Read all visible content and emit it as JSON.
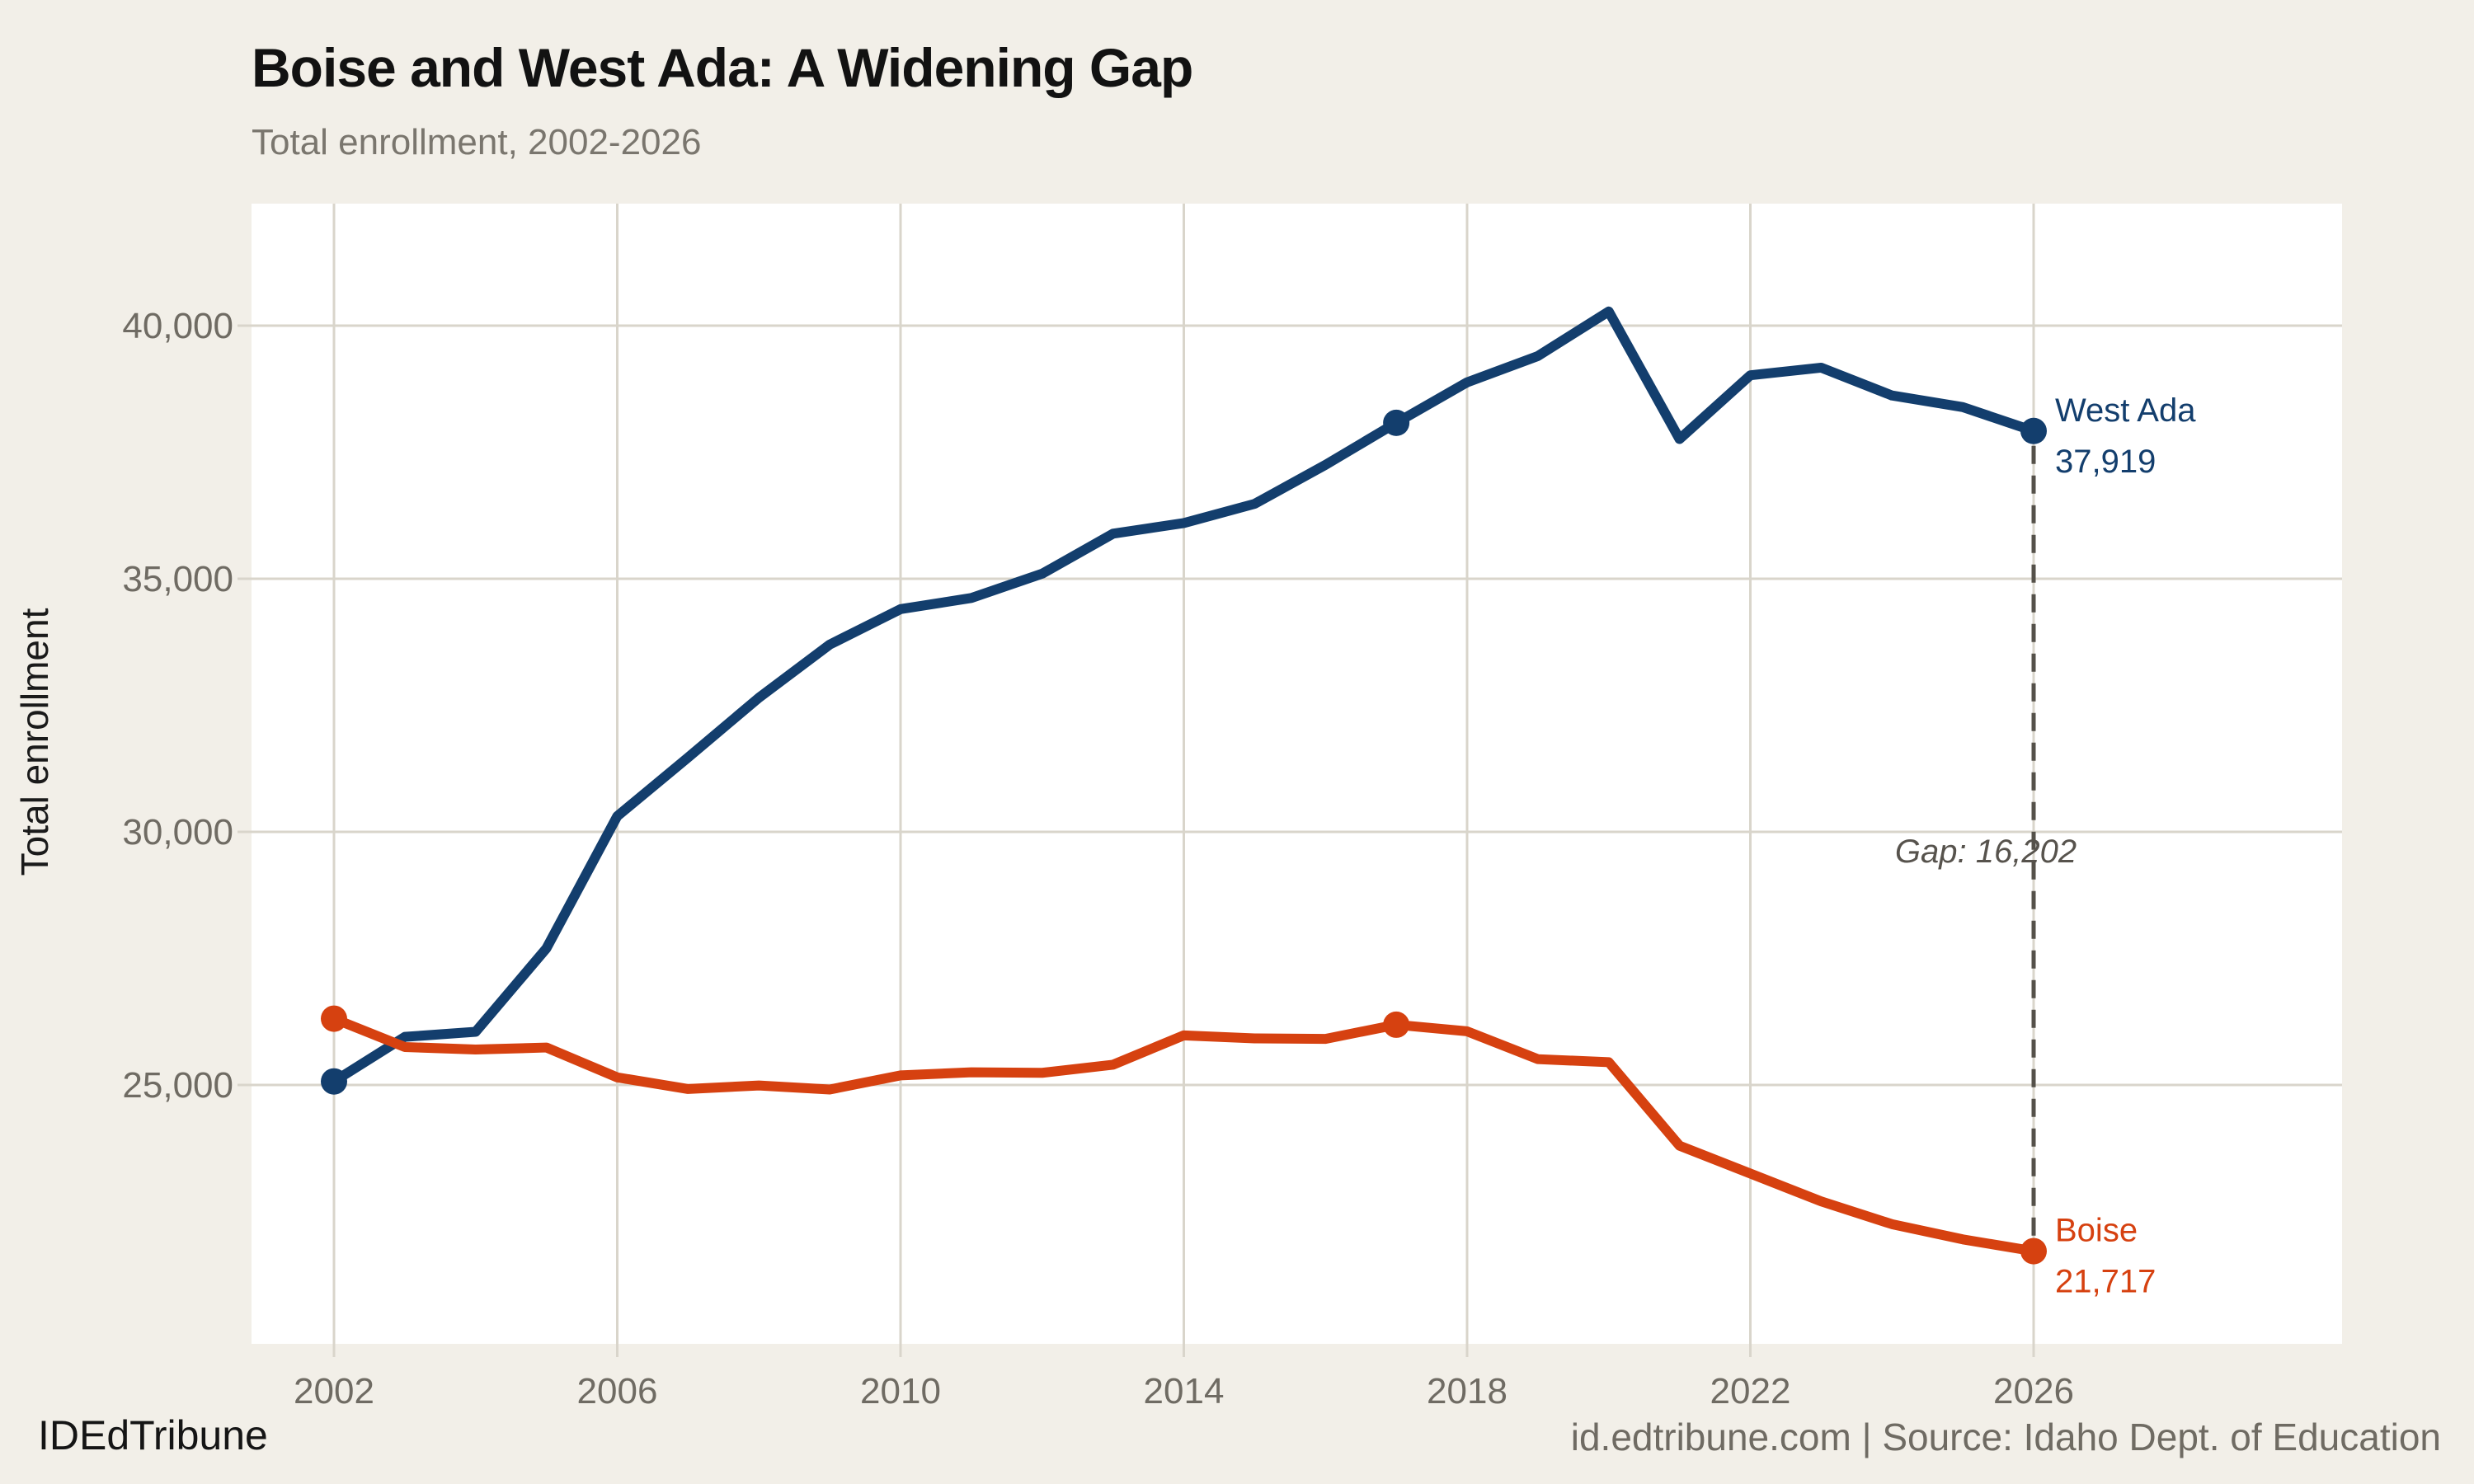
{
  "header": {
    "title": "Boise and West Ada: A Widening Gap",
    "subtitle": "Total enrollment, 2002-2026"
  },
  "footer": {
    "brand": "IDEdTribune",
    "source": "id.edtribune.com | Source: Idaho Dept. of Education"
  },
  "chart_data": {
    "type": "line",
    "title": "Boise and West Ada: A Widening Gap",
    "subtitle": "Total enrollment, 2002-2026",
    "ylabel": "Total enrollment",
    "xlabel": "",
    "x": [
      2002,
      2003,
      2004,
      2005,
      2006,
      2007,
      2008,
      2009,
      2010,
      2011,
      2012,
      2013,
      2014,
      2015,
      2016,
      2017,
      2018,
      2019,
      2020,
      2021,
      2022,
      2023,
      2024,
      2025,
      2026
    ],
    "series": [
      {
        "name": "West Ada",
        "color": "#133e6d",
        "end_label_name": "West Ada",
        "end_label_value": "37,919",
        "values": [
          25070,
          25950,
          26050,
          27700,
          30310,
          31470,
          32650,
          33700,
          34400,
          34620,
          35100,
          35890,
          36100,
          36480,
          37250,
          38080,
          38880,
          39400,
          40280,
          37760,
          39020,
          39170,
          38620,
          38390,
          37919
        ]
      },
      {
        "name": "Boise",
        "color": "#d64110",
        "end_label_name": "Boise",
        "end_label_value": "21,717",
        "values": [
          26310,
          25750,
          25700,
          25740,
          25150,
          24920,
          24990,
          24910,
          25190,
          25250,
          25240,
          25400,
          25980,
          25920,
          25910,
          26190,
          26060,
          25510,
          25450,
          23800,
          23250,
          22700,
          22250,
          21950,
          21717
        ]
      }
    ],
    "marker_years": [
      2002,
      2017,
      2026
    ],
    "x_ticks": [
      "2002",
      "2006",
      "2010",
      "2014",
      "2018",
      "2022",
      "2026"
    ],
    "x_tick_values": [
      2002,
      2006,
      2010,
      2014,
      2018,
      2022,
      2026
    ],
    "y_ticks": [
      "25,000",
      "30,000",
      "35,000",
      "40,000"
    ],
    "y_tick_values": [
      25000,
      30000,
      35000,
      40000
    ],
    "annotation": {
      "gap_label": "Gap: 16,202",
      "gap_year": 2026,
      "gap_value": 16202
    },
    "ylim": [
      19800,
      42500
    ],
    "grid": true,
    "legend_position": "end-of-line",
    "colors": {
      "west_ada": "#133e6d",
      "boise": "#d64110",
      "background": "#f2efe8",
      "plot_background": "#ffffff",
      "gridline": "#d9d5cb",
      "tick_text": "#6f6b63",
      "annotation_text": "#57534d",
      "dashed_line": "#55514a"
    }
  }
}
